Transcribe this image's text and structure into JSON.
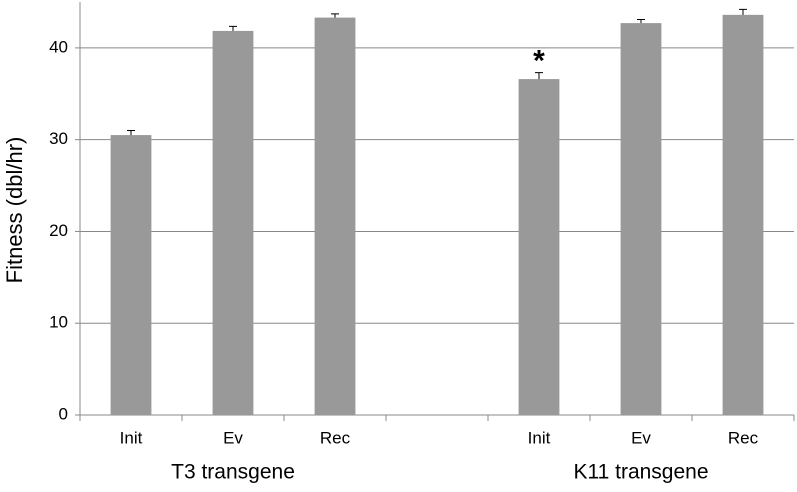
{
  "chart_data": {
    "type": "bar",
    "y_label": "Fitness (dbl/hr)",
    "categories": [
      "Init",
      "Ev",
      "Rec",
      null,
      "Init",
      "Ev",
      "Rec"
    ],
    "values": [
      30.5,
      41.85,
      43.3,
      null,
      36.6,
      42.7,
      43.6
    ],
    "errors": [
      0.5,
      0.5,
      0.4,
      null,
      0.7,
      0.4,
      0.6
    ],
    "groups": [
      "T3 transgene",
      "K11 transgene"
    ],
    "annotation": "*",
    "color": "#999999",
    "ylim": [
      0,
      45
    ],
    "yticks": [
      0,
      10,
      20,
      30,
      40
    ],
    "grid": true
  }
}
